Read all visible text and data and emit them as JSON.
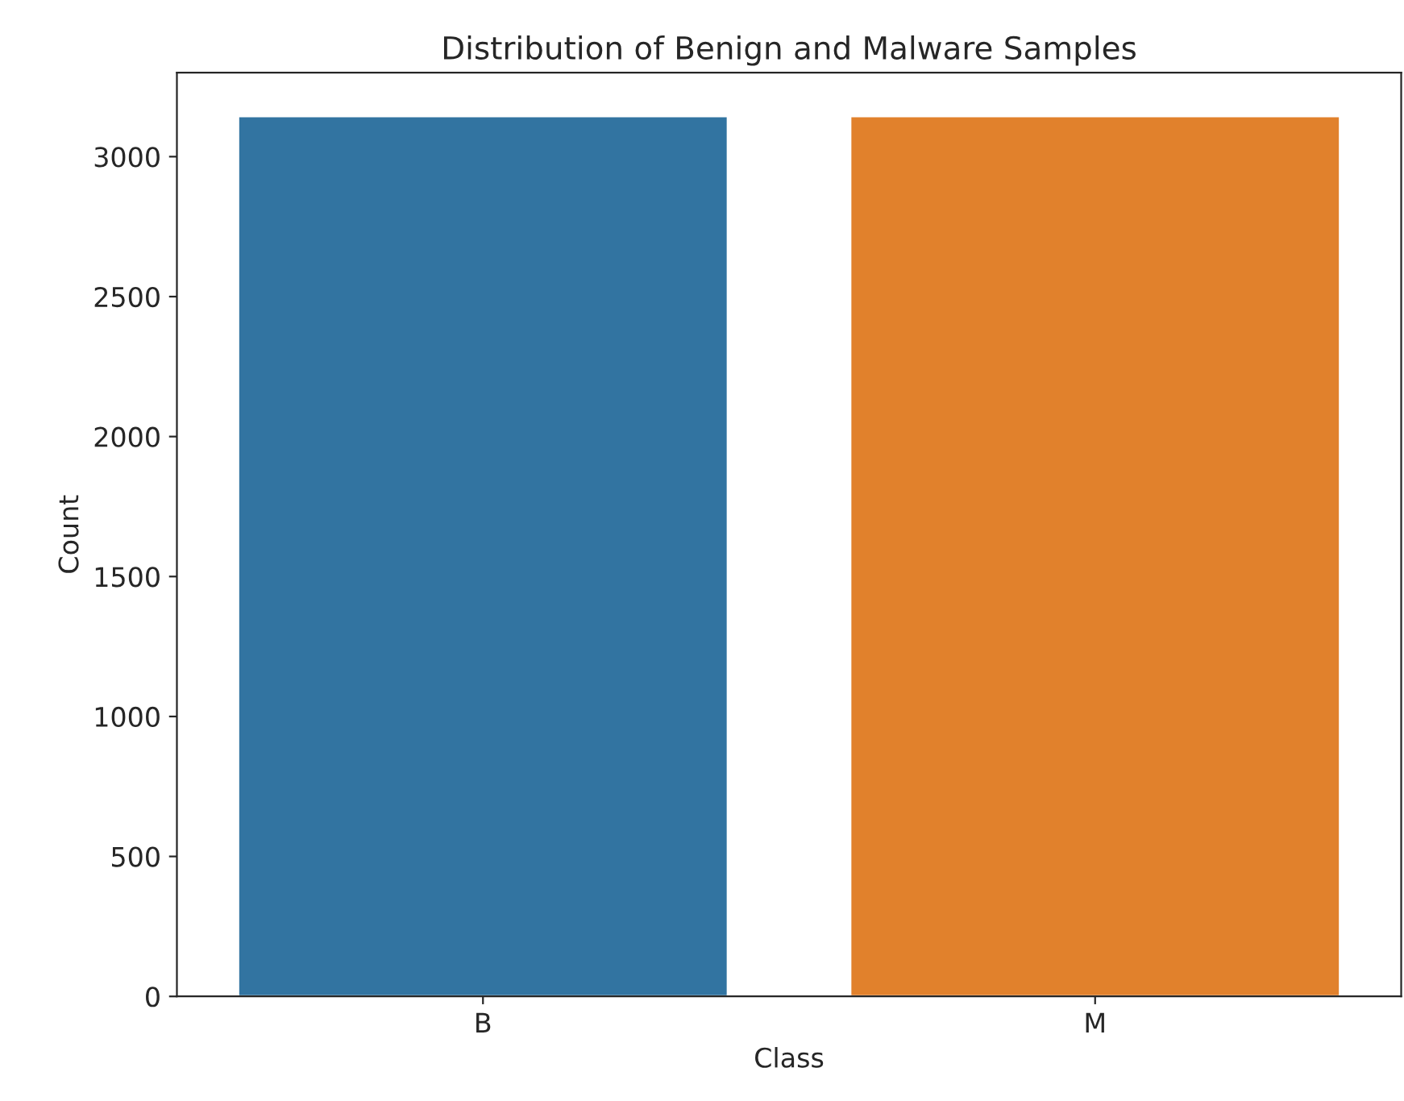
{
  "chart_data": {
    "type": "bar",
    "title": "Distribution of Benign and Malware Samples",
    "xlabel": "Class",
    "ylabel": "Count",
    "categories": [
      "B",
      "M"
    ],
    "values": [
      3145,
      3145
    ],
    "colors": [
      "#3274a1",
      "#e1812c"
    ],
    "ylim": [
      0,
      3300
    ],
    "yticks": [
      0,
      500,
      1000,
      1500,
      2000,
      2500,
      3000
    ],
    "grid": false,
    "legend": false
  }
}
